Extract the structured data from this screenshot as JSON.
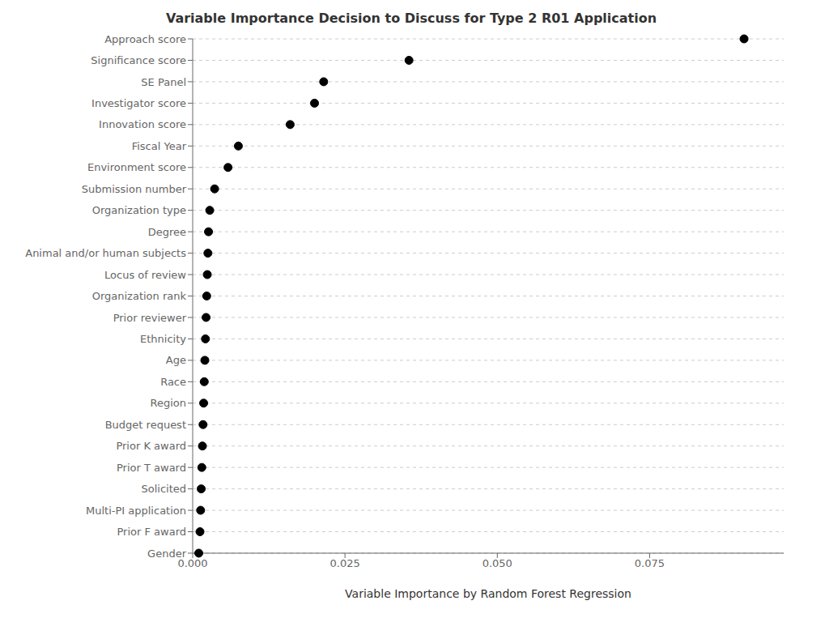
{
  "chart_data": {
    "type": "scatter",
    "title": "Variable Importance Decision to Discuss for Type 2 R01 Application",
    "xlabel": "Variable Importance by Random Forest Regression",
    "categories": [
      "Approach score",
      "Significance score",
      "SE Panel",
      "Investigator score",
      "Innovation score",
      "Fiscal Year",
      "Environment score",
      "Submission number",
      "Organization type",
      "Degree",
      "Animal and/or human subjects",
      "Locus of review",
      "Organization rank",
      "Prior reviewer",
      "Ethnicity",
      "Age",
      "Race",
      "Region",
      "Budget request",
      "Prior K award",
      "Prior T award",
      "Solicited",
      "Multi-PI application",
      "Prior F award",
      "Gender"
    ],
    "values": [
      0.0905,
      0.0355,
      0.0215,
      0.02,
      0.016,
      0.0075,
      0.0058,
      0.0036,
      0.0028,
      0.0026,
      0.0025,
      0.0024,
      0.0023,
      0.0022,
      0.0021,
      0.002,
      0.0019,
      0.0018,
      0.0017,
      0.0016,
      0.0015,
      0.0014,
      0.0013,
      0.0012,
      0.001
    ],
    "color": "#000000",
    "marker": "circle",
    "xlim": [
      0.0,
      0.097
    ],
    "xticks": [
      {
        "value": 0.0,
        "label": "0.000"
      },
      0.025,
      {
        "value": 0.05,
        "label": "0.050"
      },
      0.075
    ],
    "grid": true
  }
}
